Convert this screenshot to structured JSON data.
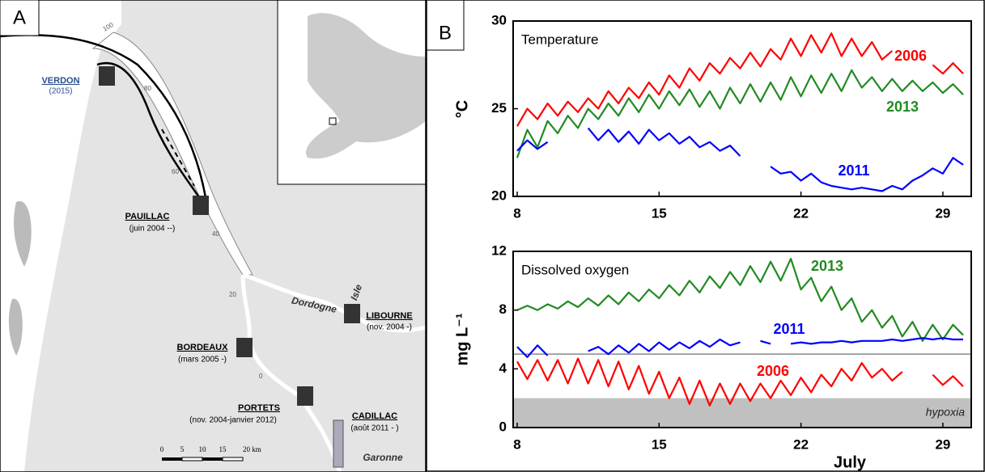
{
  "map": {
    "panel_label": "A",
    "stations": [
      {
        "name": "VERDON",
        "period": "(2015)"
      },
      {
        "name": "PAUILLAC",
        "period": "(juin 2004 --)"
      },
      {
        "name": "LIBOURNE",
        "period": "(nov. 2004 -)"
      },
      {
        "name": "BORDEAUX",
        "period": "(mars 2005 -)"
      },
      {
        "name": "PORTETS",
        "period": "(nov. 2004-janvier 2012)"
      },
      {
        "name": "CADILLAC",
        "period": "(août 2011 - )"
      }
    ],
    "rivers": [
      "Dordogne",
      "Isle",
      "Garonne"
    ],
    "km_marks": [
      100,
      80,
      60,
      40,
      20,
      0
    ],
    "scale": [
      "0",
      "5",
      "10",
      "15",
      "20 km"
    ]
  },
  "chart_panel_label": "B",
  "chart_data": [
    {
      "type": "line",
      "title": "Temperature",
      "y_label": "°C",
      "x": [
        8,
        8.5,
        9,
        9.5,
        10,
        10.5,
        11,
        11.5,
        12,
        12.5,
        13,
        13.5,
        14,
        14.5,
        15,
        15.5,
        16,
        16.5,
        17,
        17.5,
        18,
        18.5,
        19,
        19.5,
        20,
        20.5,
        21,
        21.5,
        22,
        22.5,
        23,
        23.5,
        24,
        24.5,
        25,
        25.5,
        26,
        26.5,
        27,
        27.5,
        28,
        28.5,
        29,
        29.5,
        30
      ],
      "xlim": [
        7.8,
        30.4
      ],
      "xticks": [
        8,
        15,
        22,
        29
      ],
      "ylim": [
        20,
        30
      ],
      "yticks": [
        20,
        25,
        30
      ],
      "series": [
        {
          "name": "2006",
          "color": "#ff0000",
          "values": [
            24.0,
            25.0,
            24.4,
            25.3,
            24.6,
            25.4,
            24.8,
            25.6,
            25.0,
            26.0,
            25.3,
            26.2,
            25.6,
            26.5,
            25.8,
            26.9,
            26.2,
            27.3,
            26.6,
            27.6,
            27.0,
            27.9,
            27.3,
            28.2,
            27.4,
            28.4,
            27.8,
            29.0,
            28.0,
            29.2,
            28.2,
            29.3,
            28.0,
            29.0,
            28.0,
            28.8,
            27.8,
            28.3,
            null,
            null,
            null,
            27.5,
            27.0,
            27.6,
            27.0
          ]
        },
        {
          "name": "2013",
          "color": "#228b22",
          "values": [
            22.2,
            23.8,
            22.8,
            24.3,
            23.6,
            24.6,
            23.9,
            25.0,
            24.4,
            25.3,
            24.6,
            25.6,
            24.8,
            25.8,
            25.0,
            26.0,
            25.2,
            26.1,
            25.1,
            26.0,
            25.0,
            26.2,
            25.3,
            26.4,
            25.4,
            26.5,
            25.5,
            26.8,
            25.7,
            26.9,
            25.9,
            27.0,
            26.0,
            27.2,
            26.2,
            26.8,
            26.0,
            26.7,
            26.0,
            26.6,
            26.0,
            26.5,
            25.9,
            26.4,
            25.8
          ]
        },
        {
          "name": "2011",
          "color": "#0000ff",
          "values": [
            22.6,
            23.2,
            22.7,
            23.1,
            null,
            null,
            null,
            23.9,
            23.2,
            23.8,
            23.1,
            23.7,
            23.0,
            23.8,
            23.2,
            23.6,
            23.0,
            23.4,
            22.8,
            23.1,
            22.6,
            22.9,
            22.3,
            null,
            null,
            21.7,
            21.3,
            21.4,
            20.9,
            21.3,
            20.8,
            20.6,
            20.5,
            20.4,
            20.5,
            20.4,
            20.3,
            20.6,
            20.4,
            20.9,
            21.2,
            21.6,
            21.3,
            22.2,
            21.8
          ]
        }
      ]
    },
    {
      "type": "line",
      "title": "Dissolved oxygen",
      "y_label": "mg L⁻¹",
      "x_label": "July",
      "x": [
        8,
        8.5,
        9,
        9.5,
        10,
        10.5,
        11,
        11.5,
        12,
        12.5,
        13,
        13.5,
        14,
        14.5,
        15,
        15.5,
        16,
        16.5,
        17,
        17.5,
        18,
        18.5,
        19,
        19.5,
        20,
        20.5,
        21,
        21.5,
        22,
        22.5,
        23,
        23.5,
        24,
        24.5,
        25,
        25.5,
        26,
        26.5,
        27,
        27.5,
        28,
        28.5,
        29,
        29.5,
        30
      ],
      "xlim": [
        7.8,
        30.4
      ],
      "xticks": [
        8,
        15,
        22,
        29
      ],
      "ylim": [
        0,
        12
      ],
      "yticks": [
        0,
        4,
        8,
        12
      ],
      "reference_line": 5,
      "band": {
        "range": [
          0,
          2
        ],
        "label": "hypoxia",
        "color": "#c0c0c0"
      },
      "series": [
        {
          "name": "2013",
          "color": "#228b22",
          "values": [
            8.0,
            8.3,
            8.0,
            8.4,
            8.1,
            8.6,
            8.2,
            8.8,
            8.3,
            9.0,
            8.4,
            9.2,
            8.6,
            9.4,
            8.8,
            9.7,
            9.0,
            10.0,
            9.2,
            10.3,
            9.5,
            10.6,
            9.7,
            11.0,
            9.9,
            11.3,
            10.0,
            11.5,
            9.4,
            10.2,
            8.6,
            9.6,
            8.0,
            8.8,
            7.2,
            8.0,
            6.8,
            7.6,
            6.2,
            7.2,
            5.9,
            7.0,
            6.0,
            7.0,
            6.3
          ]
        },
        {
          "name": "2011",
          "color": "#0000ff",
          "values": [
            5.5,
            4.8,
            5.6,
            4.9,
            null,
            null,
            null,
            5.2,
            5.5,
            5.0,
            5.6,
            5.1,
            5.7,
            5.2,
            5.8,
            5.3,
            5.8,
            5.4,
            5.9,
            5.5,
            6.0,
            5.6,
            5.8,
            null,
            5.9,
            5.7,
            null,
            5.7,
            5.8,
            5.7,
            5.8,
            5.8,
            5.9,
            5.8,
            5.9,
            5.9,
            5.9,
            6.0,
            5.9,
            6.0,
            6.1,
            6.0,
            6.1,
            6.0,
            6.0
          ]
        },
        {
          "name": "2006",
          "color": "#ff0000",
          "values": [
            4.5,
            3.3,
            4.6,
            3.2,
            4.6,
            3.0,
            4.7,
            3.0,
            4.6,
            2.8,
            4.5,
            2.6,
            4.2,
            2.3,
            3.8,
            2.0,
            3.4,
            1.6,
            3.2,
            1.5,
            3.0,
            1.6,
            3.0,
            1.8,
            3.0,
            2.0,
            3.2,
            2.2,
            3.4,
            2.4,
            3.6,
            2.8,
            4.0,
            3.2,
            4.4,
            3.4,
            4.0,
            3.2,
            3.8,
            null,
            null,
            3.6,
            2.9,
            3.5,
            2.8
          ]
        }
      ]
    }
  ]
}
